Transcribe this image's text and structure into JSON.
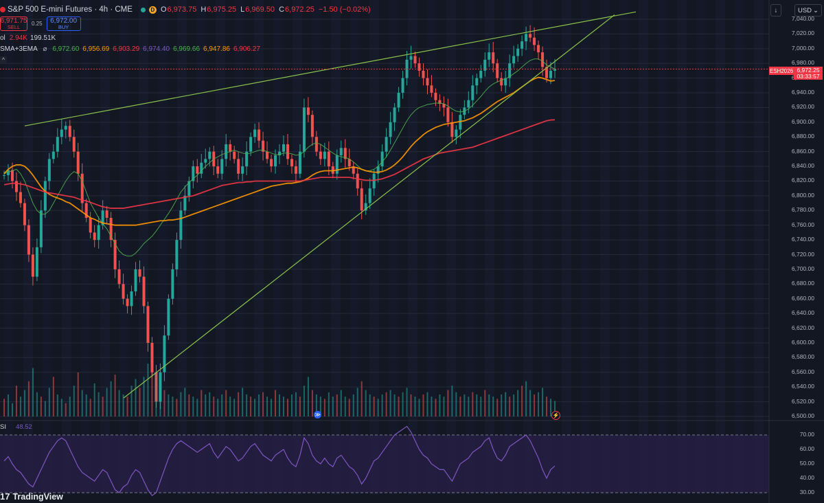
{
  "header": {
    "symbol": "S&P 500 E-mini Futures · 4h · CME",
    "status_icon": "market-open-dot",
    "d_badge": "D",
    "ohlc": [
      {
        "label": "O",
        "value": "6,973.75"
      },
      {
        "label": "H",
        "value": "6,975.25"
      },
      {
        "label": "L",
        "value": "6,969.50"
      },
      {
        "label": "C",
        "value": "6,972.25"
      }
    ],
    "change": "−1.50 (−0.02%)"
  },
  "trade": {
    "sell_price": "6,971.75",
    "sell_label": "SELL",
    "spread": "0.25",
    "buy_price": "6,972.00",
    "buy_label": "BUY"
  },
  "volume": {
    "label": "ol",
    "v1": "2.94K",
    "v2": "199.51K"
  },
  "ma_indicator": {
    "label": "SMA+3EMA",
    "icon": "eye-slash-icon",
    "values": [
      {
        "value": "6,972.60",
        "color": "#4caf50"
      },
      {
        "value": "6,956.69",
        "color": "#ff9800"
      },
      {
        "value": "6,903.29",
        "color": "#f23645"
      },
      {
        "value": "6,974.40",
        "color": "#7e57c2"
      },
      {
        "value": "6,969.66",
        "color": "#4caf50"
      },
      {
        "value": "6,947.86",
        "color": "#ff9800"
      },
      {
        "value": "6,906.27",
        "color": "#f23645"
      }
    ]
  },
  "collapse_glyph": "^",
  "rsi": {
    "label": "SI",
    "value": "48.52"
  },
  "toolbar": {
    "arrow": "↓",
    "currency": "USD",
    "currency_caret": "⌄"
  },
  "price_tag": {
    "symbol": "ESH2026",
    "price": "6,972.25",
    "countdown": "03:33:57"
  },
  "price_axis": [
    "7,040.00",
    "7,020.00",
    "7,000.00",
    "6,980.00",
    "6,960.00",
    "6,940.00",
    "6,920.00",
    "6,900.00",
    "6,880.00",
    "6,860.00",
    "6,840.00",
    "6,820.00",
    "6,800.00",
    "6,780.00",
    "6,760.00",
    "6,740.00",
    "6,720.00",
    "6,700.00",
    "6,680.00",
    "6,660.00",
    "6,640.00",
    "6,620.00",
    "6,600.00",
    "6,580.00",
    "6,560.00",
    "6,540.00",
    "6,520.00",
    "6,500.00"
  ],
  "rsi_axis": [
    "70.00",
    "60.00",
    "50.00",
    "40.00",
    "30.00"
  ],
  "brand": {
    "mark": "17",
    "name": "TradingView"
  },
  "colors": {
    "background": "#131722",
    "up": "#26a69a",
    "down": "#ef5350",
    "ma_green": "#4caf50",
    "ma_orange": "#ff9800",
    "ma_red": "#f23645",
    "rsi": "#7e57c2",
    "trendline": "#8bc34a"
  },
  "chart_data": {
    "type": "candlestick",
    "ylim": [
      6500,
      7050
    ],
    "rsi_ylim": [
      25,
      75
    ],
    "rsi_levels": [
      70,
      30
    ],
    "series": [
      {
        "name": "price",
        "values": [
          6828,
          6835,
          6820,
          6805,
          6790,
          6760,
          6720,
          6690,
          6730,
          6780,
          6820,
          6850,
          6860,
          6880,
          6890,
          6895,
          6880,
          6860,
          6830,
          6790,
          6770,
          6750,
          6740,
          6760,
          6780,
          6770,
          6740,
          6700,
          6680,
          6660,
          6650,
          6670,
          6700,
          6690,
          6650,
          6600,
          6560,
          6520,
          6560,
          6610,
          6660,
          6700,
          6740,
          6780,
          6800,
          6820,
          6840,
          6830,
          6845,
          6850,
          6860,
          6840,
          6830,
          6850,
          6870,
          6860,
          6850,
          6830,
          6840,
          6860,
          6880,
          6890,
          6875,
          6860,
          6850,
          6840,
          6855,
          6860,
          6870,
          6850,
          6840,
          6830,
          6860,
          6920,
          6910,
          6880,
          6860,
          6850,
          6860,
          6840,
          6830,
          6855,
          6865,
          6850,
          6840,
          6830,
          6810,
          6780,
          6790,
          6810,
          6830,
          6840,
          6860,
          6880,
          6900,
          6920,
          6940,
          6960,
          6985,
          6990,
          6980,
          6970,
          6960,
          6950,
          6940,
          6930,
          6925,
          6920,
          6900,
          6880,
          6890,
          6910,
          6920,
          6930,
          6950,
          6960,
          6970,
          6985,
          6995,
          6980,
          6960,
          6950,
          6960,
          6980,
          6990,
          7000,
          7010,
          7020,
          7015,
          7005,
          6995,
          6975,
          6960,
          6970,
          6972
        ]
      },
      {
        "name": "sma",
        "values": [
          6830,
          6832,
          6834,
          6836,
          6830,
          6820,
          6805,
          6790,
          6780,
          6775,
          6775,
          6780,
          6790,
          6800,
          6810,
          6820,
          6828,
          6833,
          6830,
          6820,
          6805,
          6790,
          6780,
          6770,
          6762,
          6755,
          6745,
          6735,
          6725,
          6720,
          6718,
          6718,
          6722,
          6728,
          6735,
          6740,
          6745,
          6752,
          6760,
          6768,
          6776,
          6785,
          6795,
          6805,
          6812,
          6818,
          6823,
          6828,
          6834,
          6840,
          6845,
          6850,
          6853,
          6856,
          6858,
          6860,
          6862,
          6860,
          6858,
          6857,
          6858,
          6860,
          6862,
          6862,
          6860,
          6858,
          6856,
          6856,
          6858,
          6858,
          6857,
          6855,
          6856,
          6860,
          6866,
          6870,
          6872,
          6870,
          6866,
          6862,
          6858,
          6855,
          6853,
          6852,
          6850,
          6846,
          6841,
          6836,
          6834,
          6834,
          6836,
          6840,
          6846,
          6853,
          6862,
          6872,
          6882,
          6892,
          6902,
          6910,
          6916,
          6920,
          6922,
          6924,
          6925,
          6926,
          6926,
          6925,
          6922,
          6918,
          6915,
          6914,
          6915,
          6918,
          6923,
          6929,
          6935,
          6942,
          6948,
          6952,
          6955,
          6957,
          6959,
          6962,
          6966,
          6970,
          6975,
          6980,
          6984,
          6986,
          6986,
          6983,
          6978,
          6975,
          6972.6
        ]
      },
      {
        "name": "ema_fast",
        "values": [
          6830,
          6836,
          6840,
          6842,
          6842,
          6840,
          6835,
          6828,
          6820,
          6812,
          6806,
          6802,
          6799,
          6797,
          6795,
          6792,
          6790,
          6786,
          6782,
          6778,
          6774,
          6770,
          6768,
          6765,
          6763,
          6762,
          6761,
          6760,
          6760,
          6760,
          6760,
          6760,
          6760,
          6761,
          6762,
          6763,
          6764,
          6765,
          6766,
          6766,
          6767,
          6767,
          6768,
          6769,
          6771,
          6773,
          6775,
          6777,
          6779,
          6781,
          6783,
          6785,
          6787,
          6789,
          6791,
          6793,
          6795,
          6797,
          6799,
          6801,
          6803,
          6805,
          6807,
          6809,
          6811,
          6813,
          6814,
          6815,
          6816,
          6817,
          6817,
          6818,
          6819,
          6821,
          6824,
          6828,
          6831,
          6833,
          6834,
          6834,
          6834,
          6835,
          6836,
          6837,
          6838,
          6839,
          6838,
          6836,
          6834,
          6833,
          6832,
          6832,
          6833,
          6835,
          6838,
          6842,
          6847,
          6853,
          6860,
          6867,
          6873,
          6878,
          6883,
          6887,
          6890,
          6893,
          6895,
          6897,
          6898,
          6899,
          6900,
          6901,
          6902,
          6904,
          6906,
          6909,
          6912,
          6916,
          6920,
          6924,
          6928,
          6931,
          6934,
          6937,
          6940,
          6944,
          6948,
          6952,
          6956,
          6959,
          6961,
          6960,
          6958,
          6956,
          6956.7
        ]
      },
      {
        "name": "ema_slow",
        "values": [
          6815,
          6816,
          6817,
          6817,
          6816,
          6815,
          6813,
          6811,
          6809,
          6807,
          6805,
          6804,
          6803,
          6802,
          6801,
          6800,
          6799,
          6798,
          6796,
          6794,
          6793,
          6791,
          6789,
          6787,
          6785,
          6784,
          6783,
          6783,
          6783,
          6783,
          6784,
          6785,
          6786,
          6787,
          6788,
          6789,
          6790,
          6791,
          6792,
          6793,
          6794,
          6795,
          6796,
          6797,
          6798,
          6799,
          6800,
          6802,
          6804,
          6806,
          6808,
          6810,
          6812,
          6814,
          6815,
          6816,
          6817,
          6818,
          6818,
          6819,
          6819,
          6820,
          6820,
          6820,
          6820,
          6820,
          6820,
          6820,
          6820,
          6820,
          6820,
          6820,
          6820,
          6821,
          6822,
          6823,
          6824,
          6825,
          6825,
          6825,
          6825,
          6825,
          6825,
          6825,
          6825,
          6824,
          6823,
          6822,
          6821,
          6821,
          6821,
          6822,
          6823,
          6825,
          6827,
          6829,
          6832,
          6835,
          6838,
          6841,
          6844,
          6847,
          6850,
          6852,
          6854,
          6856,
          6858,
          6859,
          6860,
          6861,
          6862,
          6863,
          6864,
          6865,
          6866,
          6868,
          6870,
          6872,
          6874,
          6876,
          6878,
          6880,
          6882,
          6884,
          6886,
          6888,
          6890,
          6892,
          6894,
          6896,
          6898,
          6900,
          6902,
          6903,
          6903.3
        ]
      }
    ],
    "rsi_values": [
      52,
      55,
      50,
      46,
      44,
      40,
      36,
      34,
      40,
      46,
      52,
      58,
      62,
      66,
      68,
      66,
      60,
      54,
      48,
      44,
      42,
      40,
      38,
      42,
      46,
      44,
      38,
      32,
      30,
      34,
      36,
      42,
      46,
      44,
      38,
      32,
      28,
      30,
      38,
      46,
      54,
      60,
      64,
      66,
      64,
      62,
      60,
      58,
      60,
      62,
      64,
      58,
      54,
      58,
      62,
      60,
      56,
      52,
      54,
      58,
      62,
      64,
      60,
      56,
      54,
      52,
      56,
      58,
      60,
      54,
      50,
      48,
      56,
      68,
      64,
      56,
      52,
      50,
      54,
      50,
      48,
      54,
      56,
      52,
      48,
      46,
      42,
      36,
      40,
      46,
      52,
      54,
      58,
      62,
      66,
      70,
      72,
      74,
      76,
      72,
      66,
      60,
      56,
      54,
      50,
      48,
      46,
      46,
      42,
      38,
      44,
      50,
      52,
      54,
      58,
      60,
      62,
      66,
      68,
      60,
      54,
      52,
      56,
      62,
      64,
      66,
      68,
      70,
      66,
      60,
      54,
      46,
      40,
      46,
      48.52
    ],
    "volume_values": [
      8,
      10,
      6,
      14,
      9,
      12,
      16,
      22,
      11,
      9,
      7,
      13,
      18,
      10,
      8,
      6,
      9,
      14,
      20,
      12,
      10,
      8,
      15,
      11,
      9,
      13,
      16,
      19,
      12,
      10,
      9,
      14,
      17,
      13,
      18,
      24,
      28,
      20,
      15,
      12,
      10,
      9,
      8,
      11,
      13,
      10,
      9,
      8,
      12,
      10,
      11,
      9,
      8,
      10,
      12,
      9,
      8,
      11,
      13,
      10,
      9,
      8,
      10,
      11,
      9,
      8,
      12,
      10,
      9,
      8,
      10,
      11,
      9,
      14,
      18,
      12,
      10,
      9,
      8,
      11,
      9,
      10,
      12,
      9,
      8,
      10,
      13,
      16,
      12,
      10,
      9,
      8,
      10,
      11,
      12,
      10,
      9,
      11,
      13,
      10,
      9,
      8,
      10,
      11,
      9,
      8,
      10,
      9,
      12,
      14,
      11,
      9,
      10,
      9,
      11,
      10,
      9,
      12,
      10,
      9,
      8,
      10,
      11,
      9,
      10,
      12,
      14,
      16,
      12,
      10,
      11,
      13,
      9,
      8,
      7
    ]
  }
}
